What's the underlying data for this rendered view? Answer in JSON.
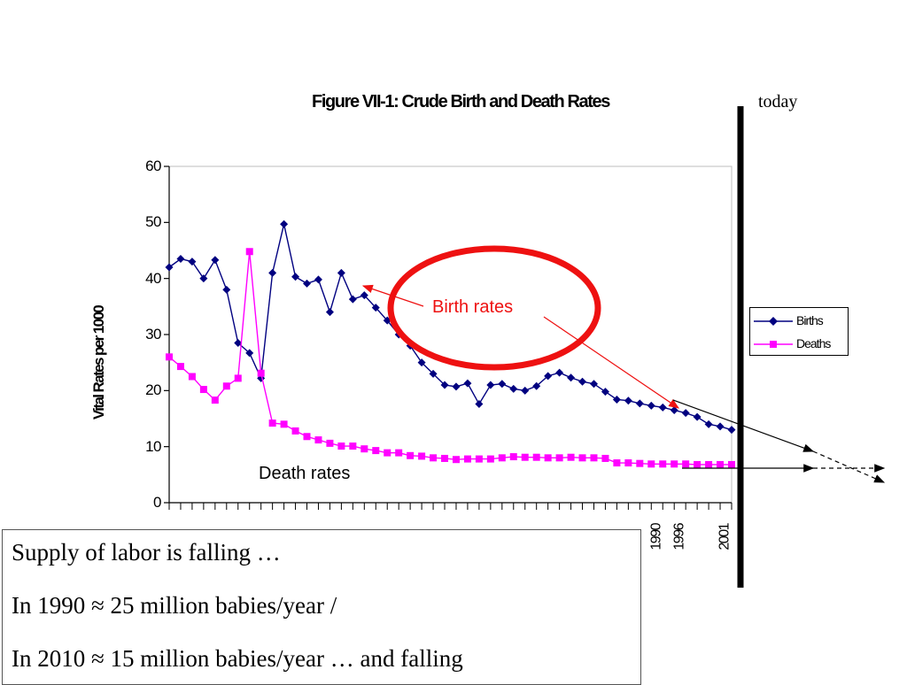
{
  "slide": {
    "today_label": "today",
    "textbox_lines": [
      "Supply of labor is falling …",
      "In 1990 ≈ 25 million babies/year /",
      "In 2010 ≈ 15 million babies/year … and falling"
    ]
  },
  "chart_data": {
    "type": "line",
    "title": "Figure VII-1: Crude Birth and Death Rates",
    "ylabel": "Vital Rates per 1000",
    "xlabel": "",
    "ylim": [
      0,
      60
    ],
    "yticks": [
      0,
      10,
      20,
      30,
      40,
      50,
      60
    ],
    "x_tick_labels_visible": [
      "1990",
      "1996",
      "2001"
    ],
    "legend_position": "right",
    "grid": false,
    "annotations": {
      "birth": "Birth rates",
      "death": "Death rates"
    },
    "colors": {
      "births": "#000080",
      "deaths": "#ff00ff",
      "oval": "#ee1111",
      "arrow": "#ee1111"
    },
    "series": [
      {
        "name": "Births",
        "marker": "diamond",
        "values": [
          42,
          43.5,
          43,
          40,
          43.3,
          38,
          28.5,
          26.7,
          22.2,
          41,
          49.7,
          40.3,
          39.1,
          39.8,
          34,
          41,
          36.3,
          37,
          34.8,
          32.5,
          30,
          28,
          25,
          23,
          21,
          20.7,
          21.3,
          17.6,
          21,
          21.2,
          20.3,
          20,
          20.8,
          22.6,
          23.2,
          22.3,
          21.6,
          21.2,
          19.8,
          18.4,
          18.2,
          17.7,
          17.3,
          17,
          16.5,
          16,
          15.3,
          14,
          13.6,
          13
        ]
      },
      {
        "name": "Deaths",
        "marker": "square",
        "values": [
          26,
          24.3,
          22.5,
          20.2,
          18.3,
          20.8,
          22.2,
          44.8,
          23.1,
          14.2,
          14,
          12.8,
          11.8,
          11.2,
          10.6,
          10.1,
          10.1,
          9.6,
          9.3,
          8.9,
          8.9,
          8.4,
          8.3,
          8,
          7.9,
          7.7,
          7.8,
          7.8,
          7.8,
          8,
          8.2,
          8.1,
          8.1,
          8,
          8,
          8.1,
          8,
          8,
          7.9,
          7.1,
          7.1,
          7,
          6.9,
          6.9,
          6.9,
          6.9,
          6.8,
          6.8,
          6.8,
          6.8
        ]
      }
    ]
  }
}
